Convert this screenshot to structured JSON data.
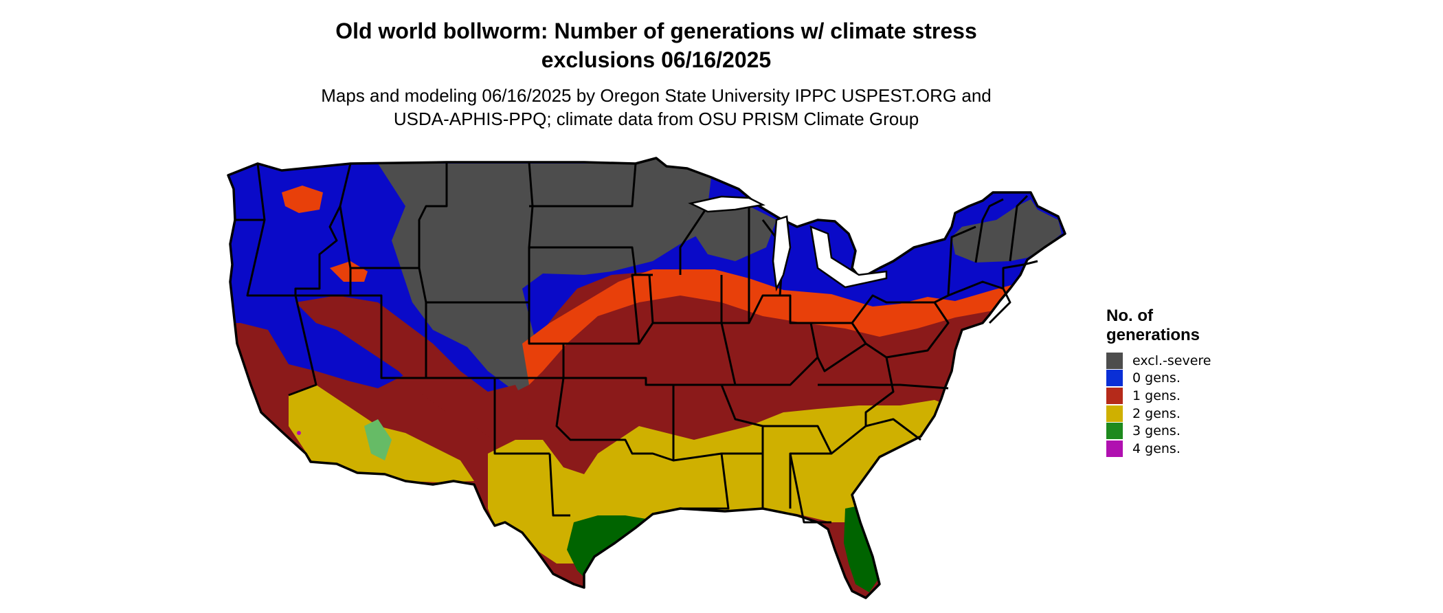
{
  "title_line1": "Old world bollworm: Number of generations w/ climate stress",
  "title_line2": "exclusions 06/16/2025",
  "subtitle_line1": "Maps and modeling 06/16/2025 by Oregon State University IPPC USPEST.ORG and",
  "subtitle_line2": "USDA-APHIS-PPQ; climate data from OSU PRISM Climate Group",
  "legend": {
    "title_line1": "No. of",
    "title_line2": "generations",
    "items": [
      {
        "label": "excl.-severe",
        "color": "#4d4d4d"
      },
      {
        "label": "0 gens.",
        "color": "#0a2fd6"
      },
      {
        "label": "1 gens.",
        "color": "#b52a1a"
      },
      {
        "label": "2 gens.",
        "color": "#cfb000"
      },
      {
        "label": "3 gens.",
        "color": "#1e8a1e"
      },
      {
        "label": "4 gens.",
        "color": "#b010b0"
      }
    ]
  },
  "map_colors": {
    "excluded": "#4d4d4d",
    "zero_gens": "#0a0ac8",
    "one_gen": "#8b1a1a",
    "one_gen_warm": "#e8400a",
    "two_gens": "#cfb000",
    "three_gens": "#006400",
    "three_gens_light": "#66bb66",
    "four_gens": "#b010b0",
    "border": "#000000"
  }
}
